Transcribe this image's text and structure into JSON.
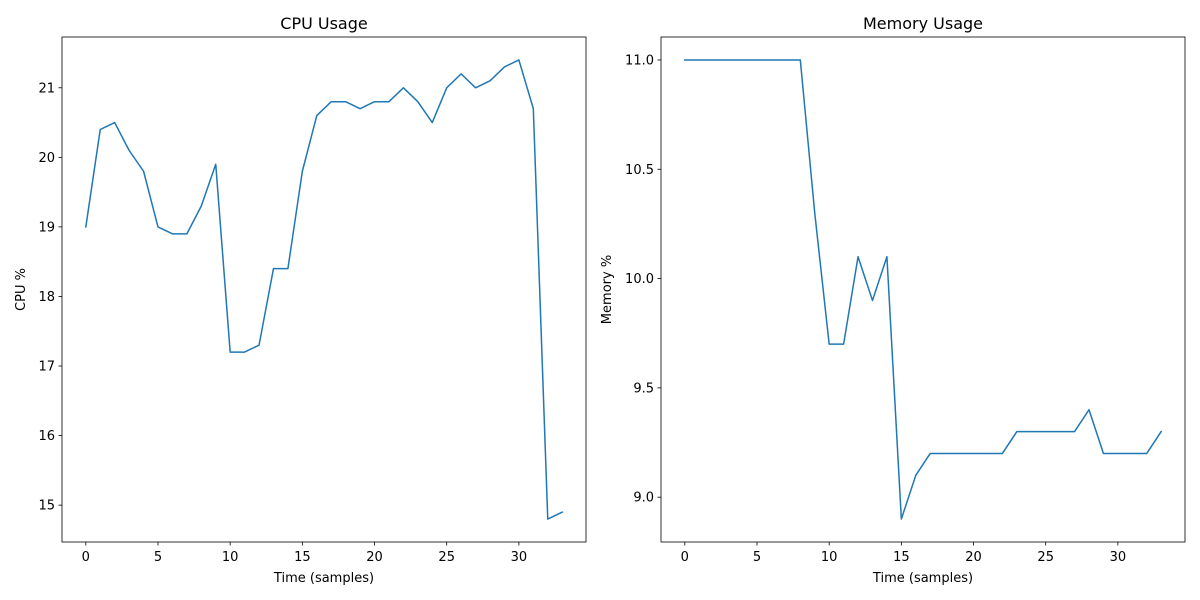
{
  "chart_data": [
    {
      "type": "line",
      "title": "CPU Usage",
      "xlabel": "Time (samples)",
      "ylabel": "CPU %",
      "xlim": [
        -1.65,
        34.65
      ],
      "ylim": [
        14.47,
        21.73
      ],
      "xticks": [
        0,
        5,
        10,
        15,
        20,
        25,
        30
      ],
      "yticks": [
        15,
        16,
        17,
        18,
        19,
        20,
        21
      ],
      "ytick_decimals": 0,
      "grid": false,
      "series": [
        {
          "color": "#1f77b4",
          "x": [
            0,
            1,
            2,
            3,
            4,
            5,
            6,
            7,
            8,
            9,
            10,
            11,
            12,
            13,
            14,
            15,
            16,
            17,
            18,
            19,
            20,
            21,
            22,
            23,
            24,
            25,
            26,
            27,
            28,
            29,
            30,
            31,
            32,
            33
          ],
          "values": [
            19.0,
            20.4,
            20.5,
            20.1,
            19.8,
            19.0,
            18.9,
            18.9,
            19.3,
            19.9,
            17.2,
            17.2,
            17.3,
            18.4,
            18.4,
            19.8,
            20.6,
            20.8,
            20.8,
            20.7,
            20.8,
            20.8,
            21.0,
            20.8,
            20.5,
            21.0,
            21.2,
            21.0,
            21.1,
            21.3,
            21.4,
            20.7,
            14.8,
            14.9
          ]
        }
      ]
    },
    {
      "type": "line",
      "title": "Memory Usage",
      "xlabel": "Time (samples)",
      "ylabel": "Memory %",
      "xlim": [
        -1.65,
        34.65
      ],
      "ylim": [
        8.795,
        11.105
      ],
      "xticks": [
        0,
        5,
        10,
        15,
        20,
        25,
        30
      ],
      "yticks": [
        9.0,
        9.5,
        10.0,
        10.5,
        11.0
      ],
      "ytick_decimals": 1,
      "grid": false,
      "series": [
        {
          "color": "#1f77b4",
          "x": [
            0,
            1,
            2,
            3,
            4,
            5,
            6,
            7,
            8,
            9,
            10,
            11,
            12,
            13,
            14,
            15,
            16,
            17,
            18,
            19,
            20,
            21,
            22,
            23,
            24,
            25,
            26,
            27,
            28,
            29,
            30,
            31,
            32,
            33
          ],
          "values": [
            11.0,
            11.0,
            11.0,
            11.0,
            11.0,
            11.0,
            11.0,
            11.0,
            11.0,
            10.3,
            9.7,
            9.7,
            10.1,
            9.9,
            10.1,
            8.9,
            9.1,
            9.2,
            9.2,
            9.2,
            9.2,
            9.2,
            9.2,
            9.3,
            9.3,
            9.3,
            9.3,
            9.3,
            9.4,
            9.2,
            9.2,
            9.2,
            9.2,
            9.3
          ]
        }
      ]
    }
  ]
}
